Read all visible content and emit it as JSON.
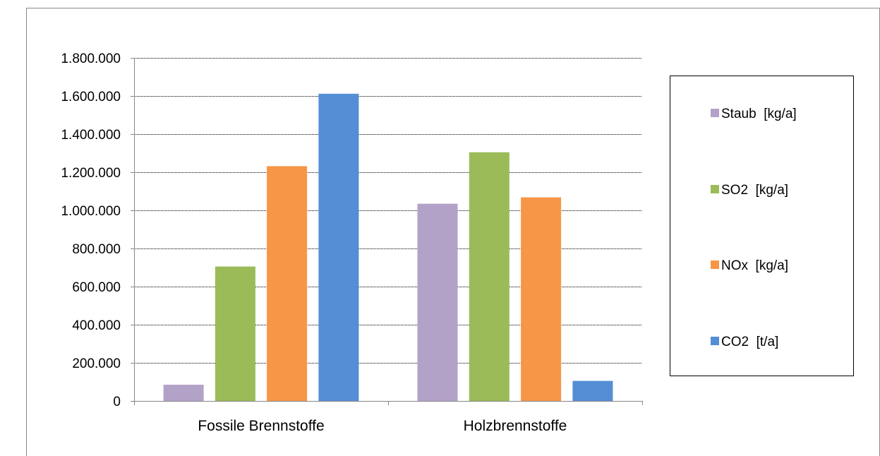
{
  "chart_data": {
    "type": "bar",
    "categories": [
      "Fossile Brennstoffe",
      "Holzbrennstoffe"
    ],
    "series": [
      {
        "name": "Staub  [kg/a]",
        "values": [
          85000,
          1035000
        ],
        "color": "#B3A2C7"
      },
      {
        "name": "SO2  [kg/a]",
        "values": [
          705000,
          1305000
        ],
        "color": "#9BBB59"
      },
      {
        "name": "NOx  [kg/a]",
        "values": [
          1232000,
          1068000
        ],
        "color": "#F79646"
      },
      {
        "name": "CO2  [t/a]",
        "values": [
          1612000,
          105000
        ],
        "color": "#558ED5"
      }
    ],
    "ylim": [
      0,
      1800000
    ],
    "yticks": [
      0,
      200000,
      400000,
      600000,
      800000,
      1000000,
      1200000,
      1400000,
      1600000,
      1800000
    ],
    "ytick_labels": [
      "0",
      "200.000",
      "400.000",
      "600.000",
      "800.000",
      "1.000.000",
      "1.200.000",
      "1.400.000",
      "1.600.000",
      "1.800.000"
    ],
    "grid": true,
    "legend": "right",
    "title": "",
    "xlabel": "",
    "ylabel": ""
  }
}
